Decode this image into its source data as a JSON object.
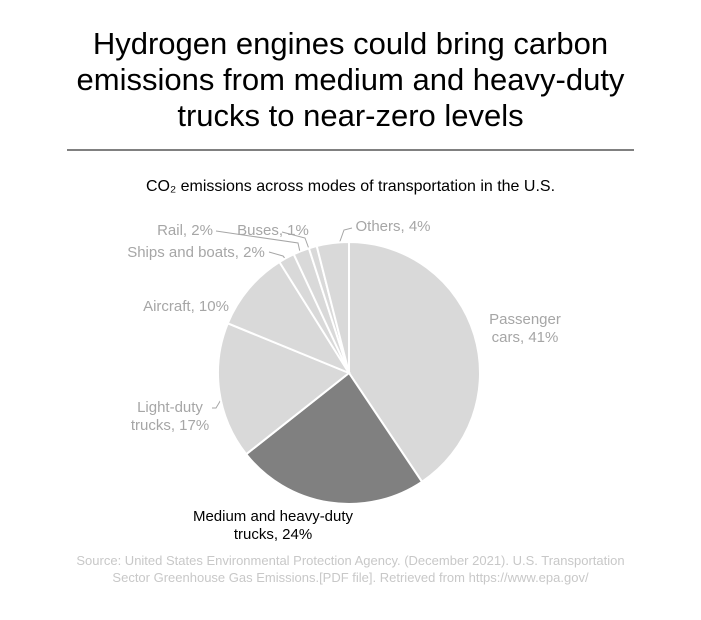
{
  "chart_data": {
    "type": "pie",
    "title": "Hydrogen engines could bring carbon emissions from medium and heavy-duty trucks to near-zero levels",
    "subtitle": "CO₂ emissions across modes of transportation in the U.S.",
    "values": [
      41,
      24,
      17,
      10,
      2,
      2,
      1,
      4
    ],
    "value_labels": [
      "Passenger cars, 41%",
      "Medium and heavy-duty trucks, 24%",
      "Light-duty trucks, 17%",
      "Aircraft, 10%",
      "Ships and boats, 2%",
      "Rail, 2%",
      "Buses, 1%",
      "Others, 4%"
    ],
    "colors": [
      "#d9d9d9",
      "#808080",
      "#d9d9d9",
      "#d9d9d9",
      "#d9d9d9",
      "#d9d9d9",
      "#d9d9d9",
      "#d9d9d9"
    ],
    "label_colors": [
      "#a6a6a6",
      "#000000",
      "#a6a6a6",
      "#a6a6a6",
      "#a6a6a6",
      "#a6a6a6",
      "#a6a6a6",
      "#a6a6a6"
    ],
    "source": [
      "Source: United States Environmental Protection Agency. (December 2021). U.S. Transportation",
      "Sector Greenhouse Gas Emissions.[PDF file]. Retrieved from https://www.epa.gov/"
    ]
  }
}
